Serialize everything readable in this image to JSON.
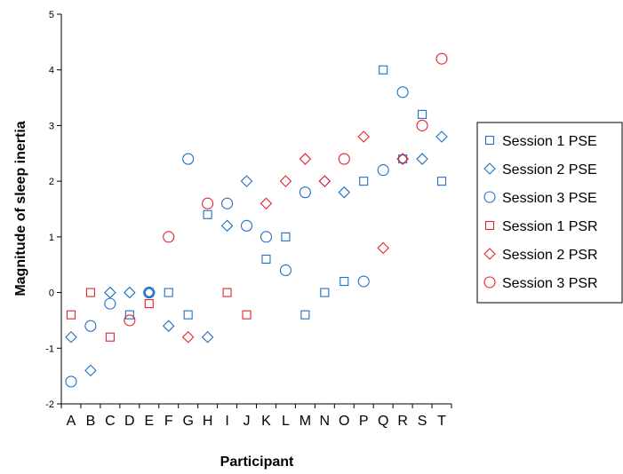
{
  "chart_data": {
    "type": "scatter",
    "xlabel": "Participant",
    "ylabel": "Magnitude of sleep inertia",
    "categories": [
      "A",
      "B",
      "C",
      "D",
      "E",
      "F",
      "G",
      "H",
      "I",
      "J",
      "K",
      "L",
      "M",
      "N",
      "O",
      "P",
      "Q",
      "R",
      "S",
      "T"
    ],
    "ylim": [
      -2,
      5
    ],
    "yticks": [
      "-2",
      "-1",
      "0",
      "1",
      "2",
      "3",
      "4",
      "5"
    ],
    "grid": false,
    "legend_position": "right",
    "series": [
      {
        "name": "Session 1 PSE",
        "marker": "square",
        "color": "#1f6fc5",
        "values": [
          null,
          null,
          null,
          -0.4,
          0,
          0,
          -0.4,
          1.4,
          null,
          null,
          0.6,
          1.0,
          -0.4,
          0,
          0.2,
          2.0,
          4.0,
          2.4,
          3.2,
          2.0
        ]
      },
      {
        "name": "Session 2 PSE",
        "marker": "diamond",
        "color": "#1f6fc5",
        "values": [
          -0.8,
          -1.4,
          0,
          0,
          0,
          -0.6,
          null,
          -0.8,
          1.2,
          2.0,
          null,
          null,
          null,
          2.0,
          1.8,
          null,
          null,
          2.4,
          2.4,
          2.8
        ]
      },
      {
        "name": "Session 3 PSE",
        "marker": "circle",
        "color": "#1f6fc5",
        "values": [
          -1.6,
          -0.6,
          -0.2,
          null,
          0,
          null,
          2.4,
          null,
          1.6,
          1.2,
          1.0,
          0.4,
          1.8,
          null,
          null,
          0.2,
          2.2,
          3.6,
          null,
          null
        ]
      },
      {
        "name": "Session 1 PSR",
        "marker": "square",
        "color": "#e8202a",
        "values": [
          -0.4,
          0,
          -0.8,
          null,
          -0.2,
          null,
          null,
          null,
          0,
          -0.4,
          null,
          null,
          null,
          null,
          null,
          null,
          null,
          null,
          null,
          null
        ]
      },
      {
        "name": "Session 2 PSR",
        "marker": "diamond",
        "color": "#e8202a",
        "values": [
          null,
          null,
          null,
          null,
          null,
          null,
          -0.8,
          null,
          null,
          null,
          1.6,
          2.0,
          2.4,
          2.0,
          null,
          2.8,
          0.8,
          2.4,
          null,
          null
        ]
      },
      {
        "name": "Session 3 PSR",
        "marker": "circle",
        "color": "#e8202a",
        "values": [
          null,
          null,
          null,
          -0.5,
          null,
          1.0,
          null,
          1.6,
          null,
          null,
          null,
          null,
          null,
          null,
          2.4,
          null,
          null,
          null,
          3.0,
          4.2
        ]
      }
    ]
  }
}
